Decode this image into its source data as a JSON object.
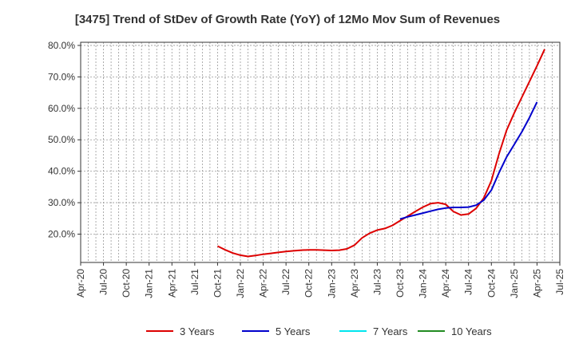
{
  "chart_data": {
    "type": "line",
    "title": "[3475]  Trend of StDev of Growth Rate (YoY) of 12Mo Mov Sum of Revenues",
    "xlabel": "",
    "ylabel": "",
    "x_ticks": [
      "Apr-20",
      "Jul-20",
      "Oct-20",
      "Jan-21",
      "Apr-21",
      "Jul-21",
      "Oct-21",
      "Jan-22",
      "Apr-22",
      "Jul-22",
      "Oct-22",
      "Jan-23",
      "Apr-23",
      "Jul-23",
      "Oct-23",
      "Jan-24",
      "Apr-24",
      "Jul-24",
      "Oct-24",
      "Jan-25",
      "Apr-25",
      "Jul-25"
    ],
    "y_ticks": [
      "20.0%",
      "30.0%",
      "40.0%",
      "50.0%",
      "60.0%",
      "70.0%",
      "80.0%"
    ],
    "y_tick_values": [
      20,
      30,
      40,
      50,
      60,
      70,
      80
    ],
    "ylim": [
      11,
      81
    ],
    "grid": true,
    "legend_position": "bottom",
    "series": [
      {
        "name": "3 Years",
        "color": "#dd0000",
        "start_index": 18,
        "values": [
          16.2,
          15.0,
          14.0,
          13.3,
          12.9,
          13.2,
          13.6,
          13.9,
          14.2,
          14.5,
          14.7,
          14.9,
          15.0,
          15.0,
          14.9,
          14.8,
          14.9,
          15.3,
          16.5,
          18.8,
          20.3,
          21.3,
          21.8,
          22.8,
          24.3,
          25.7,
          27.2,
          28.6,
          29.7,
          30.0,
          29.5,
          27.2,
          26.1,
          26.4,
          28.2,
          31.5,
          37.0,
          45.5,
          53.0,
          58.5,
          63.5,
          68.5,
          73.5,
          78.8
        ]
      },
      {
        "name": "5 Years",
        "color": "#0000cc",
        "start_index": 42,
        "values": [
          24.8,
          25.5,
          26.1,
          26.7,
          27.3,
          27.9,
          28.3,
          28.5,
          28.5,
          28.6,
          29.2,
          30.8,
          34.0,
          39.5,
          44.5,
          48.5,
          52.5,
          57.0,
          62.0
        ]
      },
      {
        "name": "7 Years",
        "color": "#00e5ee",
        "start_index": 0,
        "values": []
      },
      {
        "name": "10 Years",
        "color": "#228b22",
        "start_index": 0,
        "values": []
      }
    ]
  }
}
